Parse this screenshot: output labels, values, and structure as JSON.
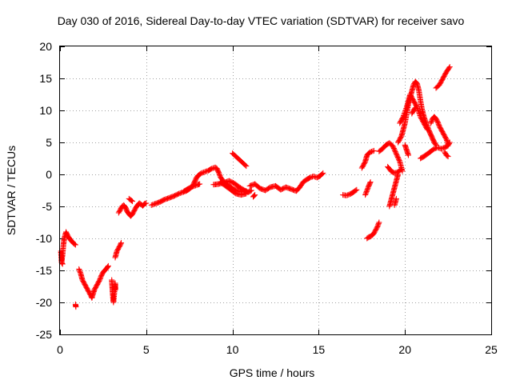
{
  "chart_data": {
    "type": "scatter",
    "title": "Day 030 of 2016, Sidereal Day-to-day VTEC variation (SDTVAR) for receiver savo",
    "xlabel": "GPS time / hours",
    "ylabel": "SDTVAR / TECUs",
    "xlim": [
      0,
      25
    ],
    "ylim": [
      -25,
      20
    ],
    "xticks": [
      "0",
      "5",
      "10",
      "15",
      "20",
      "25"
    ],
    "yticks": [
      "-25",
      "-20",
      "-15",
      "-10",
      "-5",
      "0",
      "5",
      "10",
      "15",
      "20"
    ],
    "grid": true,
    "marker": "+",
    "series": [
      {
        "name": "SDTVAR",
        "color": "#ff0000",
        "segments": [
          [
            [
              0.1,
              -13.5
            ],
            [
              0.15,
              -12.5
            ],
            [
              0.2,
              -11.0
            ],
            [
              0.25,
              -10.0
            ],
            [
              0.3,
              -9.5
            ],
            [
              0.35,
              -9.0
            ],
            [
              0.4,
              -9.3
            ],
            [
              0.5,
              -9.8
            ],
            [
              0.6,
              -10.2
            ],
            [
              0.7,
              -10.5
            ],
            [
              0.8,
              -10.8
            ],
            [
              0.9,
              -11.0
            ]
          ],
          [
            [
              0.05,
              -12.0
            ],
            [
              0.1,
              -13.8
            ],
            [
              0.15,
              -14.0
            ]
          ],
          [
            [
              0.9,
              -20.3
            ],
            [
              0.92,
              -20.7
            ]
          ],
          [
            [
              1.1,
              -14.8
            ],
            [
              1.2,
              -15.5
            ],
            [
              1.3,
              -16.5
            ],
            [
              1.4,
              -17.0
            ],
            [
              1.5,
              -17.5
            ],
            [
              1.6,
              -18.0
            ],
            [
              1.7,
              -18.5
            ],
            [
              1.8,
              -19.0
            ],
            [
              1.85,
              -19.3
            ],
            [
              1.9,
              -18.8
            ],
            [
              2.0,
              -18.0
            ],
            [
              2.1,
              -17.5
            ],
            [
              2.2,
              -17.0
            ],
            [
              2.3,
              -16.5
            ],
            [
              2.4,
              -15.8
            ],
            [
              2.5,
              -15.3
            ],
            [
              2.6,
              -15.0
            ],
            [
              2.7,
              -14.7
            ],
            [
              2.8,
              -14.3
            ]
          ],
          [
            [
              3.0,
              -16.5
            ],
            [
              3.02,
              -17.2
            ],
            [
              3.04,
              -18.0
            ],
            [
              3.06,
              -18.8
            ],
            [
              3.08,
              -19.5
            ],
            [
              3.1,
              -20.0
            ],
            [
              3.2,
              -17.0
            ],
            [
              3.22,
              -18.0
            ]
          ],
          [
            [
              3.2,
              -13.0
            ],
            [
              3.3,
              -12.0
            ],
            [
              3.4,
              -11.5
            ],
            [
              3.5,
              -11.0
            ],
            [
              3.55,
              -10.7
            ]
          ],
          [
            [
              3.4,
              -6.0
            ],
            [
              3.5,
              -5.5
            ],
            [
              3.6,
              -5.0
            ],
            [
              3.7,
              -4.8
            ],
            [
              3.8,
              -5.2
            ],
            [
              3.9,
              -5.8
            ],
            [
              4.0,
              -6.2
            ],
            [
              4.1,
              -6.5
            ],
            [
              4.2,
              -6.2
            ],
            [
              4.3,
              -5.7
            ],
            [
              4.4,
              -5.2
            ],
            [
              4.5,
              -4.8
            ],
            [
              4.6,
              -4.5
            ],
            [
              4.7,
              -4.7
            ],
            [
              4.8,
              -4.9
            ],
            [
              4.9,
              -4.6
            ],
            [
              5.0,
              -4.5
            ]
          ],
          [
            [
              4.0,
              -3.8
            ],
            [
              4.1,
              -4.0
            ],
            [
              4.2,
              -4.2
            ]
          ],
          [
            [
              5.3,
              -4.8
            ],
            [
              5.5,
              -4.6
            ],
            [
              5.8,
              -4.3
            ],
            [
              6.0,
              -4.0
            ],
            [
              6.3,
              -3.7
            ],
            [
              6.6,
              -3.4
            ],
            [
              6.9,
              -3.0
            ],
            [
              7.1,
              -2.8
            ],
            [
              7.3,
              -2.6
            ],
            [
              7.5,
              -2.3
            ],
            [
              7.7,
              -1.8
            ],
            [
              7.8,
              -1.2
            ],
            [
              7.9,
              -0.6
            ],
            [
              8.0,
              -0.2
            ],
            [
              8.2,
              0.2
            ],
            [
              8.4,
              0.4
            ],
            [
              8.6,
              0.6
            ],
            [
              8.8,
              0.9
            ],
            [
              9.0,
              1.1
            ],
            [
              9.1,
              0.9
            ],
            [
              9.2,
              0.3
            ],
            [
              9.3,
              -0.4
            ],
            [
              9.45,
              -1.0
            ],
            [
              9.6,
              -1.4
            ],
            [
              9.8,
              -1.8
            ],
            [
              10.0,
              -2.2
            ],
            [
              10.2,
              -2.5
            ],
            [
              10.5,
              -2.7
            ],
            [
              10.8,
              -2.6
            ]
          ],
          [
            [
              7.2,
              -2.6
            ],
            [
              7.4,
              -2.3
            ],
            [
              7.6,
              -2.0
            ],
            [
              7.8,
              -1.8
            ],
            [
              8.0,
              -1.6
            ],
            [
              8.1,
              -1.5
            ]
          ],
          [
            [
              8.9,
              -1.6
            ],
            [
              9.2,
              -1.5
            ],
            [
              9.5,
              -1.3
            ],
            [
              9.8,
              -1.0
            ],
            [
              10.1,
              -1.4
            ],
            [
              10.4,
              -2.0
            ],
            [
              10.7,
              -2.5
            ],
            [
              10.9,
              -2.8
            ],
            [
              11.1,
              -2.5
            ]
          ],
          [
            [
              9.3,
              -1.2
            ],
            [
              9.6,
              -1.8
            ],
            [
              9.9,
              -2.4
            ],
            [
              10.2,
              -3.0
            ],
            [
              10.5,
              -3.2
            ],
            [
              10.8,
              -3.0
            ]
          ],
          [
            [
              10.0,
              3.3
            ],
            [
              10.2,
              2.8
            ],
            [
              10.4,
              2.3
            ],
            [
              10.6,
              1.8
            ],
            [
              10.8,
              1.3
            ]
          ],
          [
            [
              11.0,
              -1.8
            ],
            [
              11.3,
              -1.5
            ],
            [
              11.6,
              -2.2
            ],
            [
              11.9,
              -2.5
            ],
            [
              12.2,
              -2.0
            ],
            [
              12.5,
              -1.8
            ],
            [
              12.8,
              -2.4
            ],
            [
              13.1,
              -2.0
            ],
            [
              13.4,
              -2.3
            ],
            [
              13.7,
              -2.6
            ],
            [
              13.9,
              -2.0
            ],
            [
              14.1,
              -1.2
            ],
            [
              14.3,
              -0.8
            ],
            [
              14.5,
              -0.5
            ],
            [
              14.7,
              -0.3
            ],
            [
              14.9,
              -0.5
            ],
            [
              15.1,
              -0.2
            ],
            [
              15.25,
              0.2
            ]
          ],
          [
            [
              11.2,
              -3.5
            ],
            [
              11.3,
              -3.2
            ]
          ],
          [
            [
              16.4,
              -3.2
            ],
            [
              16.6,
              -3.3
            ],
            [
              16.8,
              -3.1
            ],
            [
              17.0,
              -2.8
            ],
            [
              17.2,
              -2.4
            ]
          ],
          [
            [
              17.5,
              1.0
            ],
            [
              17.7,
              2.0
            ],
            [
              17.8,
              3.0
            ],
            [
              17.9,
              3.3
            ],
            [
              18.0,
              3.5
            ],
            [
              18.2,
              3.7
            ]
          ],
          [
            [
              17.7,
              -3.2
            ],
            [
              17.8,
              -2.5
            ],
            [
              17.9,
              -1.8
            ],
            [
              18.0,
              -1.2
            ]
          ],
          [
            [
              17.8,
              -10.0
            ],
            [
              17.9,
              -9.8
            ],
            [
              18.0,
              -9.7
            ],
            [
              18.1,
              -9.5
            ],
            [
              18.2,
              -9.2
            ],
            [
              18.3,
              -8.7
            ],
            [
              18.4,
              -8.2
            ],
            [
              18.5,
              -7.5
            ]
          ],
          [
            [
              18.5,
              3.6
            ],
            [
              18.7,
              4.0
            ],
            [
              18.9,
              4.6
            ],
            [
              19.1,
              4.9
            ],
            [
              19.3,
              4.4
            ],
            [
              19.5,
              3.2
            ],
            [
              19.7,
              2.0
            ],
            [
              19.85,
              0.5
            ]
          ],
          [
            [
              19.0,
              1.2
            ],
            [
              19.2,
              0.5
            ],
            [
              19.4,
              0.2
            ],
            [
              19.6,
              0.4
            ],
            [
              19.8,
              0.8
            ]
          ],
          [
            [
              19.1,
              -5.0
            ],
            [
              19.2,
              -4.0
            ],
            [
              19.3,
              -3.0
            ],
            [
              19.4,
              -2.0
            ],
            [
              19.5,
              -1.0
            ],
            [
              19.6,
              0.0
            ]
          ],
          [
            [
              19.4,
              -4.8
            ],
            [
              19.5,
              -3.8
            ]
          ],
          [
            [
              19.6,
              5.0
            ],
            [
              19.8,
              6.0
            ],
            [
              19.9,
              7.0
            ],
            [
              20.0,
              8.0
            ],
            [
              20.1,
              9.5
            ],
            [
              20.2,
              11.0
            ],
            [
              20.3,
              12.0
            ],
            [
              20.4,
              13.0
            ],
            [
              20.5,
              14.0
            ],
            [
              20.6,
              14.5
            ],
            [
              20.7,
              14.2
            ],
            [
              20.8,
              13.2
            ],
            [
              20.9,
              11.5
            ],
            [
              21.0,
              10.0
            ],
            [
              21.1,
              9.0
            ],
            [
              21.2,
              8.2
            ],
            [
              21.3,
              7.5
            ],
            [
              21.4,
              6.8
            ],
            [
              21.5,
              6.2
            ],
            [
              21.6,
              5.6
            ],
            [
              21.7,
              5.0
            ],
            [
              21.8,
              4.6
            ]
          ],
          [
            [
              19.7,
              8.0
            ],
            [
              19.9,
              9.0
            ],
            [
              20.1,
              10.5
            ],
            [
              20.3,
              12.5
            ],
            [
              20.5,
              11.5
            ],
            [
              20.7,
              10.5
            ],
            [
              20.9,
              9.0
            ],
            [
              21.1,
              8.0
            ],
            [
              21.3,
              7.0
            ]
          ],
          [
            [
              20.0,
              4.6
            ],
            [
              20.1,
              3.8
            ],
            [
              20.2,
              3.0
            ]
          ],
          [
            [
              20.4,
              9.5
            ],
            [
              20.5,
              10.0
            ],
            [
              20.6,
              10.4
            ]
          ],
          [
            [
              21.5,
              8.0
            ],
            [
              21.6,
              8.7
            ],
            [
              21.7,
              9.0
            ],
            [
              21.8,
              8.7
            ],
            [
              21.9,
              8.2
            ],
            [
              22.0,
              7.5
            ],
            [
              22.2,
              6.5
            ],
            [
              22.4,
              5.5
            ],
            [
              22.5,
              4.8
            ]
          ],
          [
            [
              20.9,
              2.5
            ],
            [
              21.1,
              2.8
            ],
            [
              21.3,
              3.2
            ],
            [
              21.5,
              3.6
            ],
            [
              21.7,
              4.0
            ],
            [
              21.9,
              4.2
            ],
            [
              22.1,
              4.0
            ],
            [
              22.3,
              4.2
            ],
            [
              22.5,
              4.5
            ],
            [
              22.6,
              5.0
            ]
          ],
          [
            [
              22.3,
              3.5
            ],
            [
              22.4,
              3.0
            ],
            [
              22.5,
              2.8
            ]
          ],
          [
            [
              21.8,
              13.5
            ],
            [
              22.0,
              14.0
            ],
            [
              22.2,
              15.0
            ],
            [
              22.4,
              16.0
            ],
            [
              22.6,
              16.8
            ]
          ]
        ]
      }
    ]
  }
}
